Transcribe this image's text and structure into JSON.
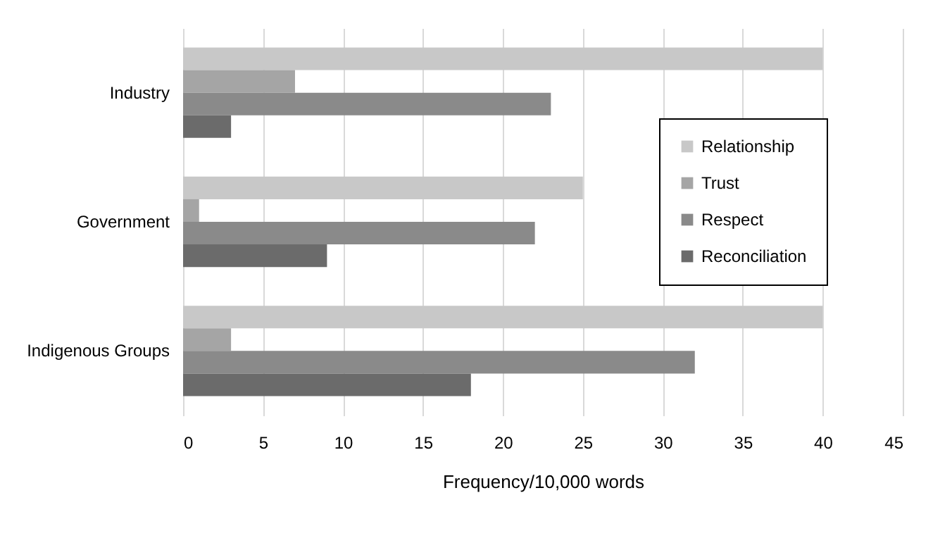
{
  "chart_data": {
    "type": "bar",
    "orientation": "horizontal",
    "xlabel": "Frequency/10,000 words",
    "categories": [
      "Industry",
      "Government",
      "Indigenous Groups"
    ],
    "series": [
      {
        "name": "Relationship",
        "color": "#c8c8c8",
        "values": [
          40,
          25,
          40
        ]
      },
      {
        "name": "Trust",
        "color": "#a5a5a5",
        "values": [
          7,
          1,
          3
        ]
      },
      {
        "name": "Respect",
        "color": "#8a8a8a",
        "values": [
          23,
          22,
          32
        ]
      },
      {
        "name": "Reconciliation",
        "color": "#6b6b6b",
        "values": [
          3,
          9,
          18
        ]
      }
    ],
    "xlim": [
      0,
      45
    ],
    "xticks": [
      0,
      5,
      10,
      15,
      20,
      25,
      30,
      35,
      40,
      45
    ],
    "grid": "x",
    "legend": "right"
  }
}
